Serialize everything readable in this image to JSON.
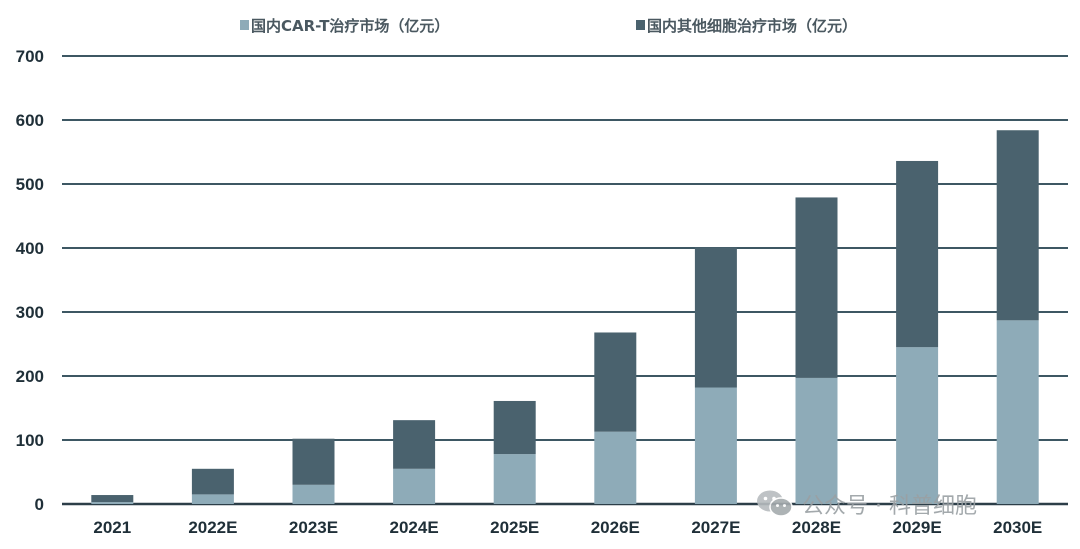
{
  "chart_data": {
    "type": "bar",
    "stacked": true,
    "categories": [
      "2021",
      "2022E",
      "2023E",
      "2024E",
      "2025E",
      "2026E",
      "2027E",
      "2028E",
      "2029E",
      "2030E"
    ],
    "series": [
      {
        "name": "国内CAR-T治疗市场（亿元）",
        "color": "#8eabb8",
        "values": [
          3,
          15,
          30,
          55,
          78,
          113,
          182,
          197,
          245,
          287
        ]
      },
      {
        "name": "国内其他细胞治疗市场（亿元）",
        "color": "#4a626e",
        "values": [
          11,
          40,
          72,
          76,
          83,
          155,
          219,
          282,
          291,
          297
        ]
      }
    ],
    "ylim": [
      0,
      700
    ],
    "yticks": [
      0,
      100,
      200,
      300,
      400,
      500,
      600,
      700
    ],
    "grid": true,
    "legend_position": "top"
  },
  "watermark": {
    "text": "公众号 · 科普细胞",
    "icon": "wechat-icon"
  }
}
